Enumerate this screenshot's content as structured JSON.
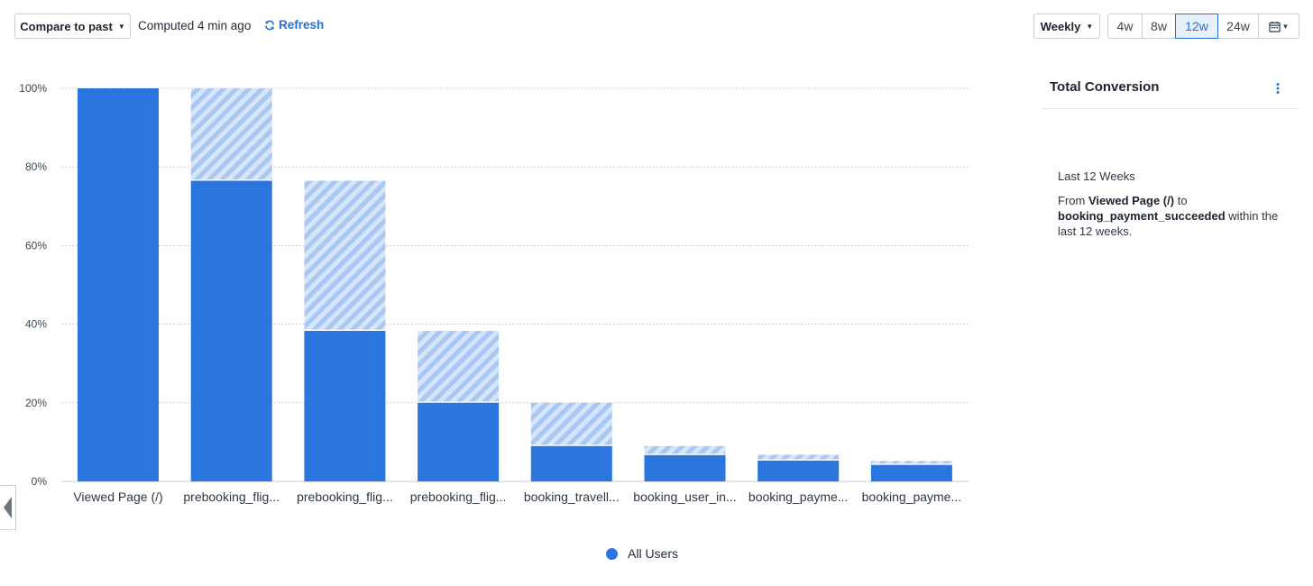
{
  "toolbar": {
    "compare_label": "Compare to past",
    "computed_text": "Computed 4 min ago",
    "refresh_label": "Refresh",
    "interval_label": "Weekly",
    "ranges": [
      "4w",
      "8w",
      "12w",
      "24w"
    ],
    "active_range": "12w",
    "calendar_icon": "calendar-icon"
  },
  "chart_data": {
    "type": "bar",
    "stacked": true,
    "categories": [
      "Viewed Page (/)",
      "prebooking_flig...",
      "prebooking_flig...",
      "prebooking_flig...",
      "booking_travell...",
      "booking_user_in...",
      "booking_payme...",
      "booking_payme..."
    ],
    "series": [
      {
        "name": "All Users",
        "values": [
          100,
          76.5,
          38.3,
          20.0,
          9.0,
          6.7,
          5.3,
          4.2
        ],
        "color": "#2a76de"
      },
      {
        "values": [
          0,
          23.5,
          38.2,
          18.3,
          11.0,
          2.3,
          1.5,
          1.0
        ],
        "color": "#b9d1f6",
        "pattern": "hatched"
      }
    ],
    "ylim": [
      0,
      100
    ],
    "yticks": [
      "0%",
      "20%",
      "40%",
      "60%",
      "80%",
      "100%"
    ],
    "grid": true,
    "legend_position": "bottom"
  },
  "legend": {
    "label": "All Users"
  },
  "panel": {
    "title": "Total Conversion",
    "period": "Last 12 Weeks",
    "desc_from": "From ",
    "desc_start_event": "Viewed  Page (/)",
    "desc_to": " to ",
    "desc_end_event": "booking_payment_succeeded",
    "desc_tail": " within the last 12 weeks."
  }
}
